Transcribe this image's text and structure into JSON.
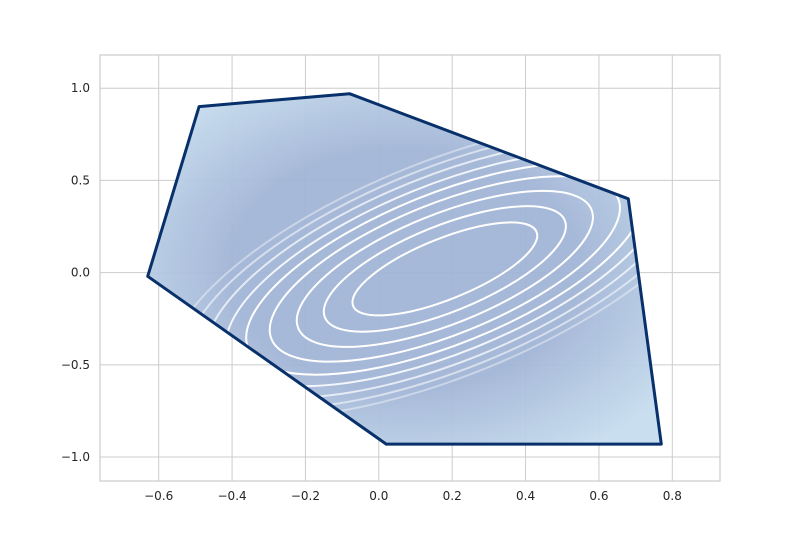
{
  "chart_data": {
    "type": "contour",
    "title": "",
    "xlabel": "",
    "ylabel": "",
    "xlim": [
      -0.76,
      0.93
    ],
    "ylim": [
      -1.13,
      1.18
    ],
    "grid": true,
    "x_ticks": [
      {
        "value": -0.6,
        "label": "−0.6"
      },
      {
        "value": -0.4,
        "label": "−0.4"
      },
      {
        "value": -0.2,
        "label": "−0.2"
      },
      {
        "value": 0.0,
        "label": "0.0"
      },
      {
        "value": 0.2,
        "label": "0.2"
      },
      {
        "value": 0.4,
        "label": "0.4"
      },
      {
        "value": 0.6,
        "label": "0.6"
      },
      {
        "value": 0.8,
        "label": "0.8"
      }
    ],
    "y_ticks": [
      {
        "value": 1.0,
        "label": "1.0"
      },
      {
        "value": 0.5,
        "label": "0.5"
      },
      {
        "value": 0.0,
        "label": "0.0"
      },
      {
        "value": -0.5,
        "label": "−0.5"
      },
      {
        "value": -1.0,
        "label": "−1.0"
      }
    ],
    "region_boundary": [
      [
        -0.63,
        -0.02
      ],
      [
        -0.49,
        0.9
      ],
      [
        -0.08,
        0.97
      ],
      [
        0.68,
        0.4
      ],
      [
        0.77,
        -0.93
      ],
      [
        0.02,
        -0.93
      ]
    ],
    "ellipse_center": [
      0.18,
      0.02
    ],
    "ellipse_angle_deg": -22,
    "contour_levels": [
      {
        "a": 0.275,
        "b": 0.31
      },
      {
        "a": 0.36,
        "b": 0.44
      },
      {
        "a": 0.44,
        "b": 0.56
      },
      {
        "a": 0.52,
        "b": 0.67
      },
      {
        "a": 0.59,
        "b": 0.77
      },
      {
        "a": 0.65,
        "b": 0.86
      },
      {
        "a": 0.71,
        "b": 0.95
      },
      {
        "a": 0.77,
        "b": 1.03
      },
      {
        "a": 0.82,
        "b": 1.1
      }
    ],
    "colors": {
      "fill_outer": "#c6dcee",
      "fill_inner": "#a2b5d6",
      "boundary": "#08306b",
      "contour": "#ffffff",
      "grid": "#cccccc"
    }
  }
}
